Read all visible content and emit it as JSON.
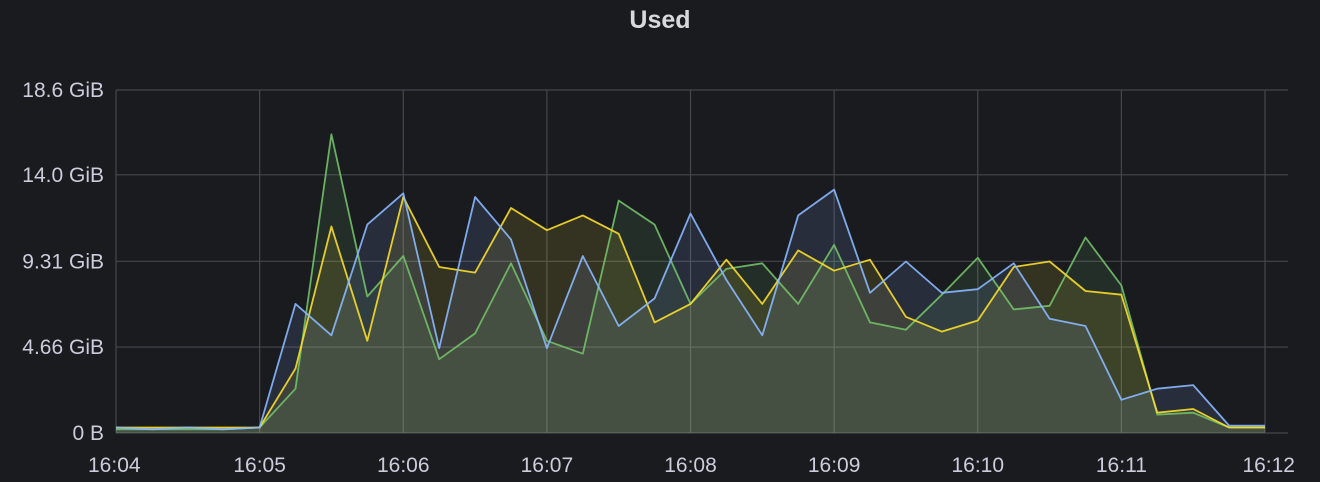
{
  "panel": {
    "title": "Used"
  },
  "chart_data": {
    "type": "area",
    "title": "Used",
    "unit": "GiB",
    "ylim": [
      0,
      18.6
    ],
    "y_ticks": [
      {
        "value": 0,
        "label": "0 B"
      },
      {
        "value": 4.66,
        "label": "4.66 GiB"
      },
      {
        "value": 9.31,
        "label": "9.31 GiB"
      },
      {
        "value": 14.0,
        "label": "14.0 GiB"
      },
      {
        "value": 18.6,
        "label": "18.6 GiB"
      }
    ],
    "x_ticks": [
      "16:04",
      "16:05",
      "16:06",
      "16:07",
      "16:08",
      "16:09",
      "16:10",
      "16:11",
      "16:12"
    ],
    "x": [
      "16:04:00",
      "16:04:15",
      "16:04:30",
      "16:04:45",
      "16:05:00",
      "16:05:15",
      "16:05:30",
      "16:05:45",
      "16:06:00",
      "16:06:15",
      "16:06:30",
      "16:06:45",
      "16:07:00",
      "16:07:15",
      "16:07:30",
      "16:07:45",
      "16:08:00",
      "16:08:15",
      "16:08:30",
      "16:08:45",
      "16:09:00",
      "16:09:15",
      "16:09:30",
      "16:09:45",
      "16:10:00",
      "16:10:15",
      "16:10:30",
      "16:10:45",
      "16:11:00",
      "16:11:15",
      "16:11:30",
      "16:11:45",
      "16:12:00"
    ],
    "grid": true,
    "legend": "none",
    "series": [
      {
        "color": "#73bf69",
        "values": [
          0.2,
          0.2,
          0.2,
          0.2,
          0.3,
          2.4,
          16.2,
          7.4,
          9.6,
          4.0,
          5.4,
          9.2,
          5.0,
          4.3,
          12.6,
          11.3,
          7.0,
          8.9,
          9.2,
          7.0,
          10.2,
          6.0,
          5.6,
          7.5,
          9.5,
          6.7,
          6.9,
          10.6,
          8.0,
          1.0,
          1.1,
          0.3,
          0.3
        ]
      },
      {
        "color": "#fade2a",
        "values": [
          0.3,
          0.3,
          0.3,
          0.3,
          0.3,
          3.5,
          11.2,
          5.0,
          12.8,
          9.0,
          8.7,
          12.2,
          11.0,
          11.8,
          10.8,
          6.0,
          7.0,
          9.4,
          7.0,
          9.9,
          8.8,
          9.4,
          6.3,
          5.5,
          6.1,
          9.0,
          9.3,
          7.7,
          7.5,
          1.1,
          1.3,
          0.3,
          0.3
        ]
      },
      {
        "color": "#8ab8ff",
        "values": [
          0.3,
          0.2,
          0.3,
          0.2,
          0.3,
          7.0,
          5.3,
          11.3,
          13.0,
          4.6,
          12.8,
          10.5,
          4.6,
          9.6,
          5.8,
          7.3,
          11.9,
          8.3,
          5.3,
          11.8,
          13.2,
          7.6,
          9.3,
          7.6,
          7.8,
          9.2,
          6.2,
          5.8,
          1.8,
          2.4,
          2.6,
          0.4,
          0.4
        ]
      }
    ]
  }
}
